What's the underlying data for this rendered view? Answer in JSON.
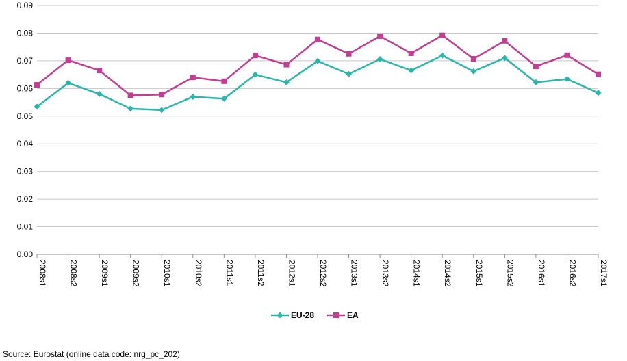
{
  "chart_data": {
    "type": "line",
    "title": "",
    "xlabel": "",
    "ylabel": "",
    "categories": [
      "2008s1",
      "2008s2",
      "2009s1",
      "2009s2",
      "2010s1",
      "2010s2",
      "2011s1",
      "2011s2",
      "2012s1",
      "2012s2",
      "2013s1",
      "2013s2",
      "2014s1",
      "2014s2",
      "2015s1",
      "2015s2",
      "2016s1",
      "2016s2",
      "2017s1"
    ],
    "ylim": [
      0,
      0.09
    ],
    "yticks": [
      "0.00",
      "0.01",
      "0.02",
      "0.03",
      "0.04",
      "0.05",
      "0.06",
      "0.07",
      "0.08",
      "0.09"
    ],
    "grid": true,
    "legend_position": "bottom",
    "series": [
      {
        "name": "EU-28",
        "color": "#2bb5ab",
        "marker": "diamond",
        "values": [
          0.0534,
          0.062,
          0.058,
          0.0527,
          0.0522,
          0.057,
          0.0563,
          0.065,
          0.0622,
          0.0699,
          0.0652,
          0.0706,
          0.0665,
          0.0719,
          0.0662,
          0.071,
          0.0622,
          0.0634,
          0.0584
        ]
      },
      {
        "name": "EA",
        "color": "#c03f93",
        "marker": "square",
        "values": [
          0.0613,
          0.0702,
          0.0665,
          0.0575,
          0.0578,
          0.064,
          0.0626,
          0.0719,
          0.0686,
          0.0777,
          0.0725,
          0.0789,
          0.0727,
          0.0792,
          0.0707,
          0.0772,
          0.068,
          0.072,
          0.0651
        ]
      }
    ]
  },
  "source_text": "Source: Eurostat (online data code: nrg_pc_202)"
}
